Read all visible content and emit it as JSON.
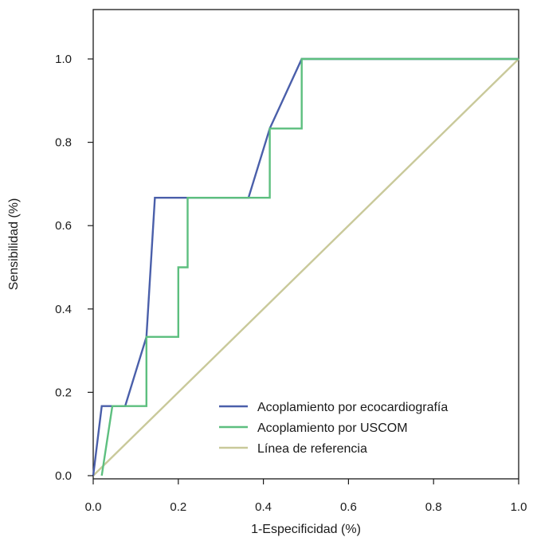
{
  "chart_data": {
    "type": "line",
    "title": "",
    "xlabel": "1-Especificidad (%)",
    "ylabel": "Sensibilidad (%)",
    "xlim": [
      0,
      1.0
    ],
    "ylim": [
      0,
      1.0
    ],
    "grid": false,
    "legend_position": "bottom-right",
    "x_ticks": [
      "0.0",
      "0.2",
      "0.4",
      "0.6",
      "0.8",
      "1.0"
    ],
    "y_ticks": [
      "0.0",
      "0.2",
      "0.4",
      "0.6",
      "0.8",
      "1.0"
    ],
    "series": [
      {
        "name": "Línea de referencia",
        "color": "#c9c99a",
        "points": [
          [
            0.0,
            0.0
          ],
          [
            1.0,
            1.0
          ]
        ]
      },
      {
        "name": "Acoplamiento por ecocardiografía",
        "color": "#4a5faa",
        "points": [
          [
            0.0,
            0.0
          ],
          [
            0.02,
            0.167
          ],
          [
            0.075,
            0.167
          ],
          [
            0.125,
            0.333
          ],
          [
            0.145,
            0.667
          ],
          [
            0.365,
            0.667
          ],
          [
            0.415,
            0.833
          ],
          [
            0.49,
            1.0
          ],
          [
            1.0,
            1.0
          ]
        ]
      },
      {
        "name": "Acoplamiento por USCOM",
        "color": "#5dbf7f",
        "points": [
          [
            0.02,
            0.0
          ],
          [
            0.045,
            0.167
          ],
          [
            0.125,
            0.167
          ],
          [
            0.125,
            0.333
          ],
          [
            0.2,
            0.333
          ],
          [
            0.2,
            0.5
          ],
          [
            0.222,
            0.5
          ],
          [
            0.222,
            0.667
          ],
          [
            0.415,
            0.667
          ],
          [
            0.415,
            0.833
          ],
          [
            0.49,
            0.833
          ],
          [
            0.49,
            1.0
          ],
          [
            1.0,
            1.0
          ]
        ]
      }
    ],
    "legend": [
      {
        "label": "Acoplamiento por ecocardiografía",
        "color": "#4a5faa"
      },
      {
        "label": "Acoplamiento por USCOM",
        "color": "#5dbf7f"
      },
      {
        "label": "Línea de referencia",
        "color": "#c9c99a"
      }
    ]
  }
}
